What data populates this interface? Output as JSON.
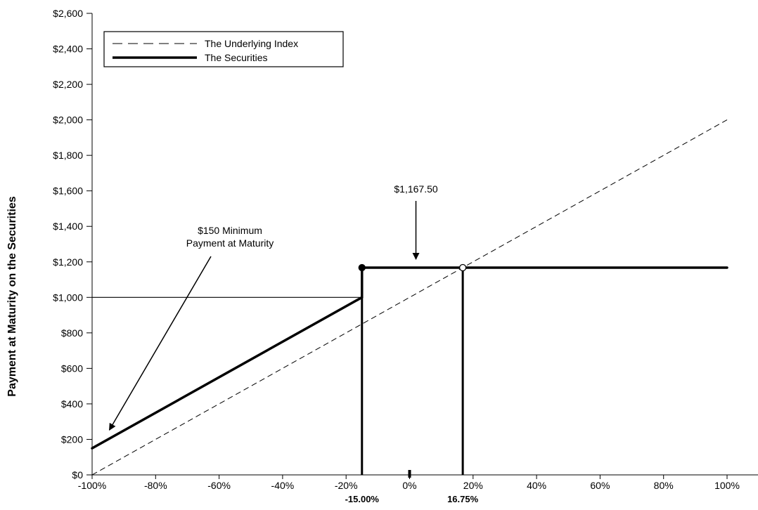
{
  "chart_data": {
    "type": "line",
    "ylabel": "Payment at Maturity on the Securities",
    "xlim": [
      -100,
      100
    ],
    "ylim": [
      0,
      2600
    ],
    "x_ticks": [
      -100,
      -80,
      -60,
      -40,
      -20,
      0,
      20,
      40,
      60,
      80,
      100
    ],
    "x_tick_labels": [
      "-100%",
      "-80%",
      "-60%",
      "-40%",
      "-20%",
      "0%",
      "20%",
      "40%",
      "60%",
      "80%",
      "100%"
    ],
    "y_ticks": [
      0,
      200,
      400,
      600,
      800,
      1000,
      1200,
      1400,
      1600,
      1800,
      2000,
      2200,
      2400,
      2600
    ],
    "y_tick_labels": [
      "$0",
      "$200",
      "$400",
      "$600",
      "$800",
      "$1,000",
      "$1,200",
      "$1,400",
      "$1,600",
      "$1,800",
      "$2,000",
      "$2,200",
      "$2,400",
      "$2,600"
    ],
    "special_x_ticks": [
      {
        "x": -15,
        "label": "-15.00%"
      },
      {
        "x": 16.75,
        "label": "16.75%"
      }
    ],
    "legend_position": "top-left",
    "series": [
      {
        "name": "The Underlying Index",
        "style": "dashed",
        "points": [
          [
            -100,
            0
          ],
          [
            100,
            2000
          ]
        ]
      },
      {
        "name": "The Securities",
        "style": "thick-solid",
        "segments": [
          [
            [
              -100,
              150
            ],
            [
              -15,
              1000
            ]
          ],
          [
            [
              -15,
              1000
            ],
            [
              -15,
              1167.5
            ]
          ],
          [
            [
              -15,
              1167.5
            ],
            [
              100,
              1167.5
            ]
          ]
        ]
      }
    ],
    "reference_lines": [
      {
        "type": "horizontal",
        "y": 1000,
        "x_from": -100,
        "x_to": -15
      },
      {
        "type": "vertical",
        "x": -15,
        "y_from": 0,
        "y_to": 1000
      },
      {
        "type": "vertical",
        "x": 16.75,
        "y_from": 0,
        "y_to": 1167.5
      }
    ],
    "markers": [
      {
        "x": -15,
        "y": 1167.5,
        "fill": "filled"
      },
      {
        "x": 16.75,
        "y": 1167.5,
        "fill": "open"
      }
    ],
    "annotations": [
      {
        "lines": [
          "$1,167.50"
        ],
        "target": [
          2,
          1167.5
        ]
      },
      {
        "lines": [
          "$150 Minimum",
          "Payment at Maturity"
        ],
        "target": [
          -95,
          150
        ]
      }
    ]
  }
}
